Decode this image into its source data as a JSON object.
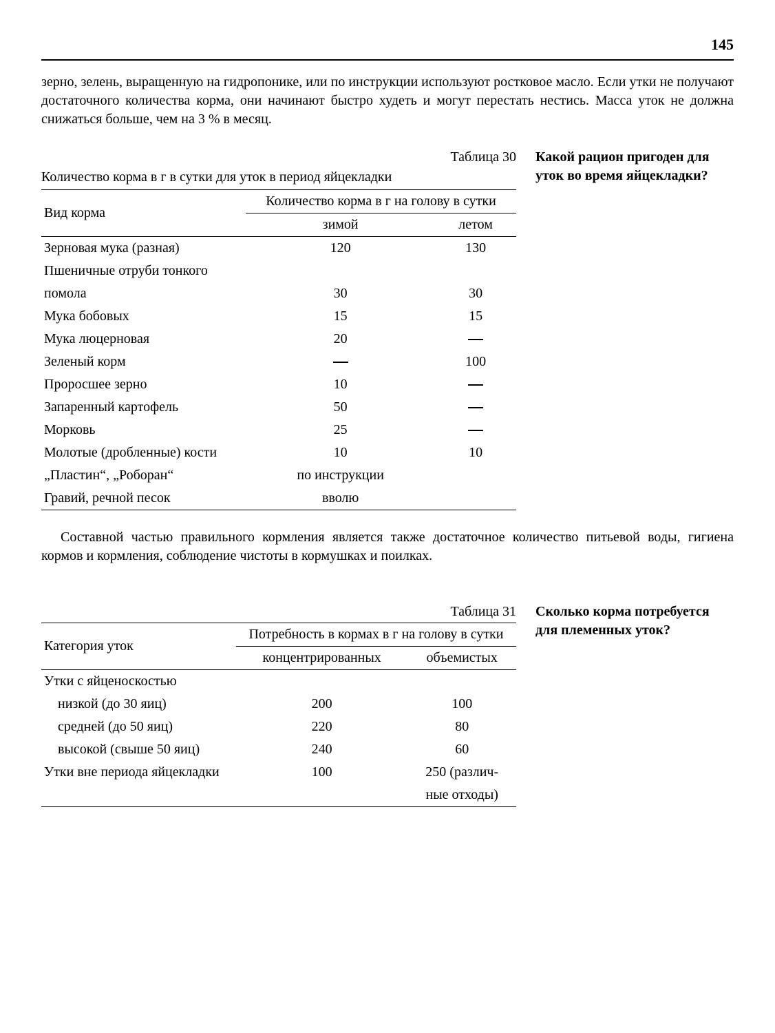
{
  "page_number": "145",
  "intro_paragraph": "зерно, зелень, выращенную на гидропонике, или по инструкции используют ростковое масло. Если утки не получают достаточного количества корма, они начинают быстро худеть и могут перестать нестись. Масса уток не должна снижаться больше, чем на 3 % в месяц.",
  "table30": {
    "label": "Таблица 30",
    "caption": "Количество корма в г в сутки для уток в период яйцекладки",
    "side_question": "Какой рацион пригоден для уток во время яйцекладки?",
    "header_main": "Вид корма",
    "header_group": "Количество корма в г на голову в сутки",
    "col_winter": "зимой",
    "col_summer": "летом",
    "rows": [
      {
        "name": "Зерновая мука (разная)",
        "winter": "120",
        "summer": "130"
      },
      {
        "name": "Пшеничные отруби тонкого помола",
        "winter": "30",
        "summer": "30"
      },
      {
        "name": "Мука бобовых",
        "winter": "15",
        "summer": "15"
      },
      {
        "name": "Мука люцерновая",
        "winter": "20",
        "summer": "—"
      },
      {
        "name": "Зеленый корм",
        "winter": "—",
        "summer": "100"
      },
      {
        "name": "Проросшее зерно",
        "winter": "10",
        "summer": "—"
      },
      {
        "name": "Запаренный картофель",
        "winter": "50",
        "summer": "—"
      },
      {
        "name": "Морковь",
        "winter": "25",
        "summer": "—"
      },
      {
        "name": "Молотые (дробленные) кости",
        "winter": "10",
        "summer": "10"
      },
      {
        "name": "„Пластин“, „Роборан“",
        "winter": "по инструкции",
        "summer": ""
      },
      {
        "name": "Гравий, речной песок",
        "winter": "вволю",
        "summer": ""
      }
    ]
  },
  "mid_paragraph": "Составной частью правильного кормления является также достаточное количество питьевой воды, гигиена кормов и кормления, соблюдение чистоты в кормушках и поилках.",
  "table31": {
    "label": "Таблица 31",
    "side_question": "Сколько корма потребуется для племенных уток?",
    "header_main": "Категория уток",
    "header_group": "Потребность в кормах в г на голову в сутки",
    "col_conc": "концентрированных",
    "col_bulk": "объемистых",
    "group1": "Утки с яйценоскостью",
    "rows": [
      {
        "name": "низкой (до 30 яиц)",
        "conc": "200",
        "bulk": "100"
      },
      {
        "name": "средней (до 50 яиц)",
        "conc": "220",
        "bulk": "80"
      },
      {
        "name": "высокой (свыше 50 яиц)",
        "conc": "240",
        "bulk": "60"
      }
    ],
    "row_last_name": "Утки вне периода яйцекладки",
    "row_last_conc": "100",
    "row_last_bulk1": "250 (различ-",
    "row_last_bulk2": "ные отходы)"
  }
}
